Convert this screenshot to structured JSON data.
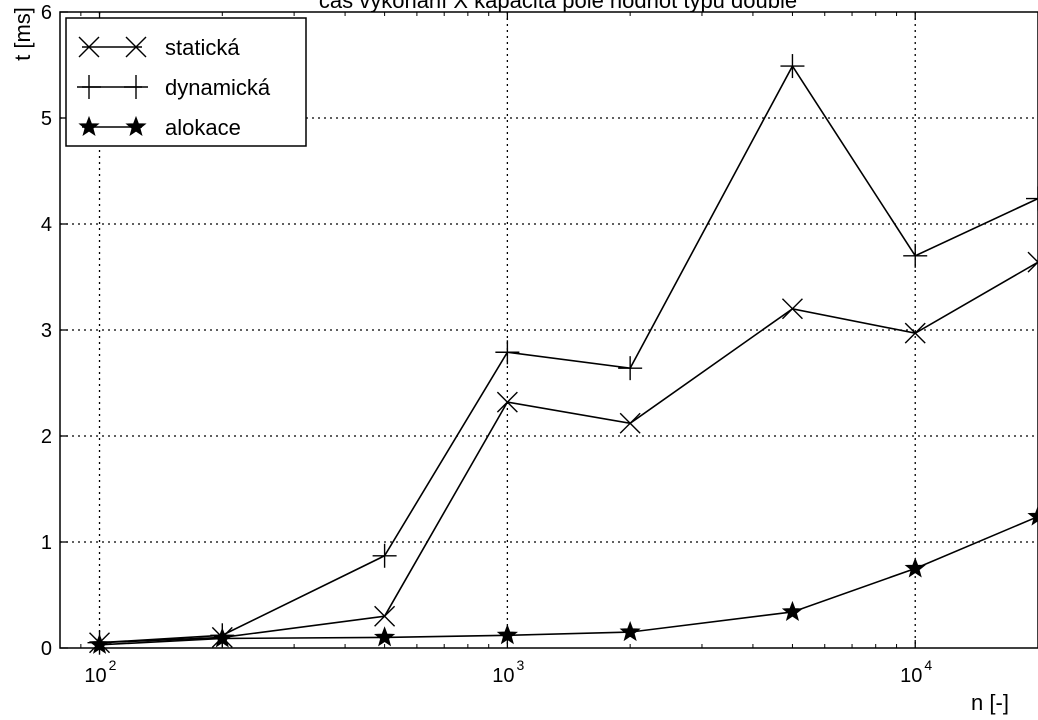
{
  "chart_data": {
    "type": "line",
    "title": "čas vykonání X kapacita pole hodnot typu double",
    "xlabel": "n [-]",
    "ylabel": "t [ms]",
    "x_scale": "log",
    "xlim": [
      80,
      20000
    ],
    "ylim": [
      0,
      6
    ],
    "x_ticks": [
      {
        "value": 100,
        "base": "10",
        "exp": "2"
      },
      {
        "value": 1000,
        "base": "10",
        "exp": "3"
      },
      {
        "value": 10000,
        "base": "10",
        "exp": "4"
      }
    ],
    "y_ticks": [
      0,
      1,
      2,
      3,
      4,
      5,
      6
    ],
    "grid": true,
    "legend_position": "top-left",
    "x": [
      100,
      200,
      500,
      1000,
      2000,
      5000,
      10000,
      20000
    ],
    "series": [
      {
        "name": "statická",
        "marker": "x",
        "values": [
          0.05,
          0.1,
          0.3,
          2.32,
          2.12,
          3.2,
          2.97,
          3.64
        ]
      },
      {
        "name": "dynamická",
        "marker": "plus",
        "values": [
          0.05,
          0.12,
          0.87,
          2.79,
          2.64,
          5.49,
          3.7,
          4.24
        ]
      },
      {
        "name": "alokace",
        "marker": "star",
        "values": [
          0.03,
          0.09,
          0.1,
          0.12,
          0.15,
          0.34,
          0.75,
          1.24
        ]
      }
    ]
  }
}
